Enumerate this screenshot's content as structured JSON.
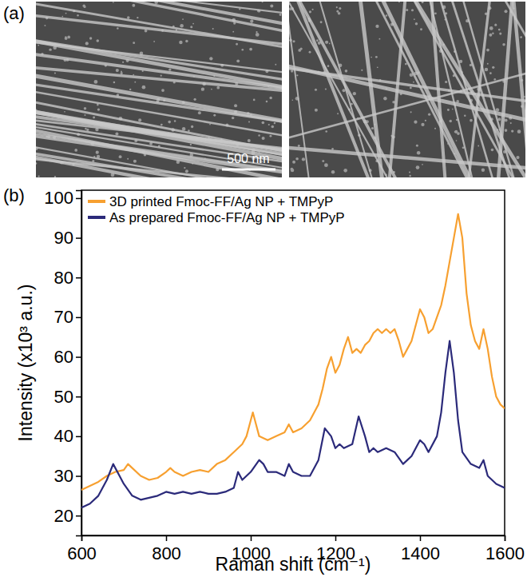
{
  "chart_data": {
    "type": "line",
    "x_label": "Raman shift (cm⁻¹)",
    "y_label": "Intensity (x10³ a.u.)",
    "xlim": [
      600,
      1600
    ],
    "xticks": [
      600,
      800,
      1000,
      1200,
      1400,
      1600
    ],
    "ylim": [
      15,
      102
    ],
    "yticks": [
      20,
      30,
      40,
      50,
      60,
      70,
      80,
      90,
      100
    ],
    "legend": "upper left",
    "series": [
      {
        "name": "3D printed Fmoc-FF/Ag NP + TMPyP",
        "color": "#f7a030",
        "x": [
          600,
          620,
          640,
          660,
          680,
          700,
          710,
          720,
          740,
          760,
          780,
          800,
          810,
          820,
          840,
          860,
          880,
          900,
          920,
          940,
          960,
          980,
          990,
          1000,
          1005,
          1010,
          1020,
          1040,
          1060,
          1080,
          1090,
          1100,
          1120,
          1140,
          1160,
          1170,
          1180,
          1190,
          1200,
          1210,
          1220,
          1230,
          1240,
          1250,
          1260,
          1270,
          1280,
          1290,
          1300,
          1310,
          1320,
          1330,
          1340,
          1350,
          1360,
          1370,
          1380,
          1390,
          1400,
          1410,
          1420,
          1430,
          1440,
          1450,
          1460,
          1470,
          1480,
          1490,
          1500,
          1510,
          1520,
          1530,
          1540,
          1550,
          1560,
          1570,
          1580,
          1590,
          1600
        ],
        "values": [
          26.5,
          27.5,
          28.5,
          30,
          31,
          31.5,
          33,
          32,
          30,
          29,
          29.5,
          31,
          32,
          31,
          30,
          31,
          31.5,
          31,
          33,
          34,
          36,
          38,
          40,
          44,
          46,
          44,
          40,
          39,
          40,
          41,
          43,
          41,
          42,
          44,
          48,
          52,
          57,
          60,
          56,
          58,
          62,
          65,
          61,
          62,
          61,
          63,
          64,
          66,
          67,
          66,
          67,
          66,
          67,
          64,
          60,
          62,
          64,
          68,
          72,
          70,
          66,
          67,
          70,
          73,
          78,
          84,
          90,
          96,
          90,
          76,
          68,
          64,
          62,
          67,
          62,
          55,
          50,
          48,
          47
        ]
      },
      {
        "name": "As prepared Fmoc-FF/Ag NP + TMPyP",
        "color": "#2b2a7a",
        "x": [
          600,
          620,
          640,
          660,
          675,
          690,
          700,
          720,
          740,
          760,
          780,
          800,
          820,
          840,
          860,
          880,
          900,
          920,
          940,
          960,
          970,
          980,
          1000,
          1020,
          1030,
          1040,
          1060,
          1080,
          1090,
          1100,
          1120,
          1140,
          1160,
          1175,
          1190,
          1200,
          1210,
          1220,
          1240,
          1255,
          1270,
          1280,
          1290,
          1300,
          1320,
          1340,
          1360,
          1380,
          1400,
          1410,
          1420,
          1440,
          1450,
          1460,
          1470,
          1480,
          1490,
          1500,
          1520,
          1540,
          1550,
          1560,
          1580,
          1600
        ],
        "values": [
          22,
          23,
          25,
          29,
          33,
          30,
          28,
          25,
          24,
          24.5,
          25,
          26,
          25.5,
          26,
          25.5,
          26,
          25.5,
          25.5,
          26,
          27,
          31,
          29,
          31,
          34,
          33,
          31,
          31,
          30,
          33,
          31,
          30,
          30,
          34,
          42,
          40,
          37,
          38,
          37,
          38,
          45,
          40,
          36,
          37,
          36,
          37,
          36,
          33,
          35,
          39,
          38,
          36,
          40,
          46,
          56,
          64,
          56,
          44,
          36,
          33,
          32,
          34,
          30,
          28,
          27
        ]
      }
    ]
  },
  "figure": {
    "panels": [
      "(a)",
      "(b)"
    ],
    "scale_bar": "500 nm"
  }
}
